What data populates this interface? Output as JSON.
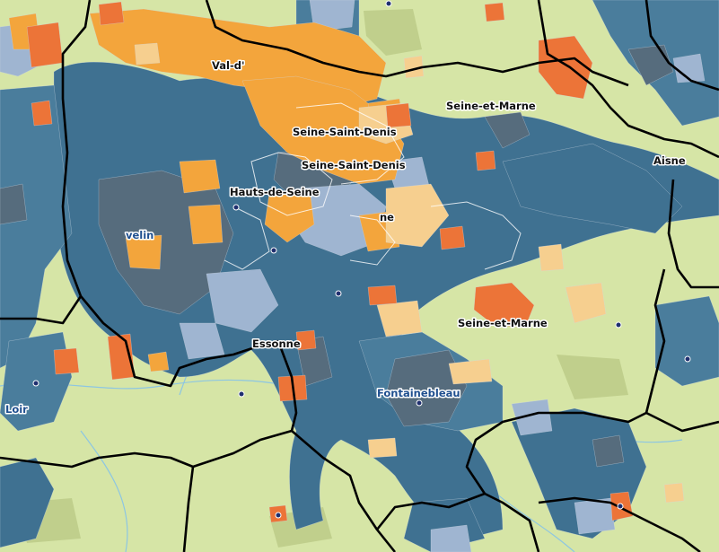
{
  "colors": {
    "background": "#d6e5a6",
    "blue_dark": "#3f7191",
    "blue_mid": "#4a7d9c",
    "blue_light": "#9fb5d1",
    "slate": "#566c7d",
    "orange": "#f3a53c",
    "orange_light": "#f6cf8f",
    "red_orange": "#ec7438",
    "forest": "#c0cf8c",
    "water": "#8dc6e2",
    "boundary": "#000000",
    "city_dot": "#1f2f6f"
  },
  "labels": {
    "val_d": "Val-d'",
    "seine_et_marne_n": "Seine-et-Marne",
    "seine_saint_denis": "Seine-Saint-Denis",
    "seine_saint_denis_2": "Seine-Saint-Denis",
    "aisne": "Aisne",
    "hauts_de_seine": "Hauts-de-Seine",
    "velin": "velin",
    "seine_et_marne_s": "Seine-et-Marne",
    "essonne": "Essonne",
    "fontainebleau": "Fontainebleau",
    "loir": "Loir",
    "ne": "ne"
  }
}
